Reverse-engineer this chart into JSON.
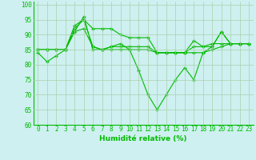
{
  "xlabel": "Humidité relative (%)",
  "background_color": "#cef0f0",
  "grid_color": "#aacfaa",
  "line_color": "#00bb00",
  "xlim": [
    -0.5,
    23.5
  ],
  "ylim": [
    60,
    101
  ],
  "yticks": [
    60,
    65,
    70,
    75,
    80,
    85,
    90,
    95,
    100
  ],
  "xticks": [
    0,
    1,
    2,
    3,
    4,
    5,
    6,
    7,
    8,
    9,
    10,
    11,
    12,
    13,
    14,
    15,
    16,
    17,
    18,
    19,
    20,
    21,
    22,
    23
  ],
  "series": [
    [
      84,
      81,
      83,
      85,
      91,
      96,
      85,
      85,
      86,
      87,
      85,
      78,
      70,
      65,
      70,
      75,
      79,
      75,
      84,
      86,
      91,
      87,
      87,
      87
    ],
    [
      85,
      85,
      85,
      85,
      92,
      95,
      92,
      92,
      92,
      90,
      89,
      89,
      89,
      84,
      84,
      84,
      84,
      88,
      86,
      86,
      91,
      87,
      87,
      87
    ],
    [
      85,
      85,
      85,
      85,
      91,
      92,
      86,
      85,
      86,
      86,
      86,
      86,
      86,
      84,
      84,
      84,
      84,
      86,
      86,
      87,
      87,
      87,
      87,
      87
    ],
    [
      85,
      85,
      85,
      85,
      93,
      95,
      86,
      85,
      85,
      85,
      85,
      85,
      85,
      84,
      84,
      84,
      84,
      84,
      84,
      85,
      86,
      87,
      87,
      87
    ]
  ]
}
